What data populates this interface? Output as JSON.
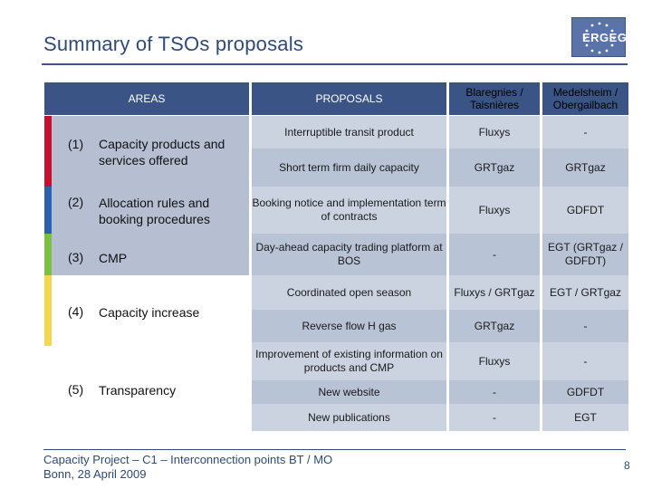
{
  "title": "Summary of TSOs proposals",
  "logo_text": "ERGEG",
  "headers": {
    "areas": "AREAS",
    "proposals": "PROPOSALS",
    "col_a": "Blaregnies / Taisnières",
    "col_b": "Medelsheim / Obergailbach"
  },
  "areas": [
    {
      "num": "(1)",
      "label": "Capacity products and services offered",
      "color": "#c8102e"
    },
    {
      "num": "(2)",
      "label": "Allocation rules and booking procedures",
      "color": "#2b5fb0"
    },
    {
      "num": "(3)",
      "label": "CMP",
      "color": "#7ac142"
    },
    {
      "num": "(4)",
      "label": "Capacity increase",
      "color": "#f3d84e"
    },
    {
      "num": "(5)",
      "label": "Transparency",
      "color": "#ffffff"
    }
  ],
  "rows": [
    {
      "proposal": "Interruptible transit product",
      "a": "Fluxys",
      "b": "-"
    },
    {
      "proposal": "Short term firm daily capacity",
      "a": "GRTgaz",
      "b": "GRTgaz"
    },
    {
      "proposal": "Booking notice and implementation term of contracts",
      "a": "Fluxys",
      "b": "GDFDT"
    },
    {
      "proposal": "Day-ahead capacity trading platform at BOS",
      "a": "-",
      "b": "EGT (GRTgaz / GDFDT)"
    },
    {
      "proposal": "Coordinated open season",
      "a": "Fluxys / GRTgaz",
      "b": "EGT / GRTgaz"
    },
    {
      "proposal": "Reverse flow H gas",
      "a": "GRTgaz",
      "b": "-"
    },
    {
      "proposal": "Improvement of existing information on products and CMP",
      "a": "Fluxys",
      "b": "-"
    },
    {
      "proposal": "New website",
      "a": "-",
      "b": "GDFDT"
    },
    {
      "proposal": "New publications",
      "a": "-",
      "b": "EGT"
    }
  ],
  "footer": {
    "line1": "Capacity Project – C1 – Interconnection points BT / MO",
    "line2": "Bonn, 28 April 2009"
  },
  "page_number": "8",
  "colors": {
    "header_dark": "#3a5486",
    "header_light": "#a6b4cd",
    "row_light": "#cbd3e1",
    "row_dark": "#b9c3d6",
    "area_panel": "#b5bfd1"
  }
}
